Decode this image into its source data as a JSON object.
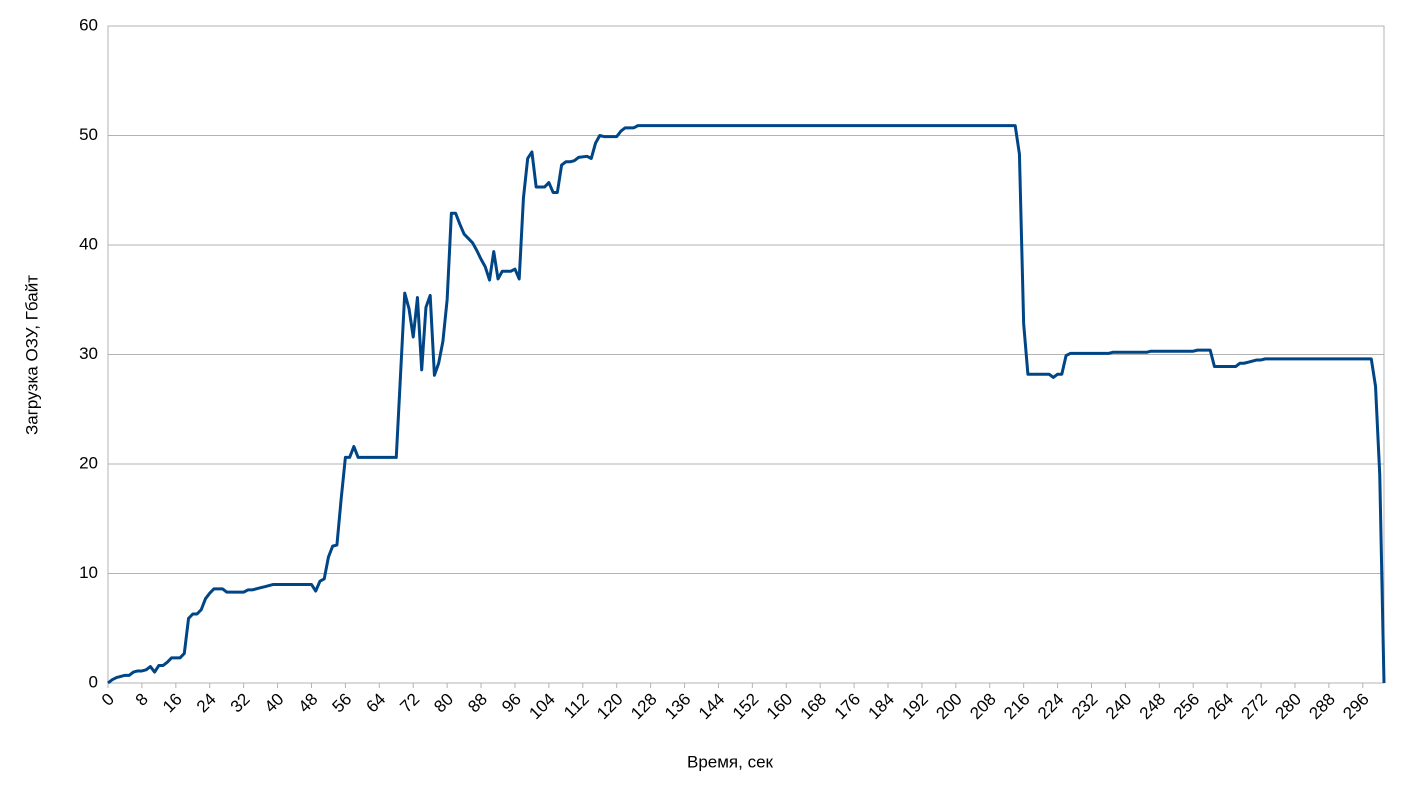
{
  "chart_data": {
    "type": "line",
    "x_label": "Время, сек",
    "y_label": "Загрузка ОЗУ, Гбайт",
    "xlim": [
      0,
      301
    ],
    "xticks": [
      0,
      8,
      16,
      24,
      32,
      40,
      48,
      56,
      64,
      72,
      80,
      88,
      96,
      104,
      112,
      120,
      128,
      136,
      144,
      152,
      160,
      168,
      176,
      184,
      192,
      200,
      208,
      216,
      224,
      232,
      240,
      248,
      256,
      264,
      272,
      280,
      288,
      296
    ],
    "ylim": [
      0,
      60
    ],
    "yticks": [
      0,
      10,
      20,
      30,
      40,
      50,
      60
    ],
    "grid": true,
    "series": [
      {
        "name": null,
        "color": "#004586",
        "x": [
          0,
          1,
          2,
          3,
          4,
          5,
          6,
          7,
          8,
          9,
          10,
          11,
          12,
          13,
          14,
          15,
          17,
          18,
          19,
          20,
          21,
          22,
          23,
          24,
          25,
          27,
          28,
          32,
          33,
          34,
          35,
          36,
          37,
          38,
          39,
          48,
          49,
          50,
          51,
          52,
          53,
          54,
          55,
          56,
          57,
          58,
          59,
          68,
          70,
          71,
          72,
          73,
          74,
          75,
          76,
          77,
          78,
          79,
          80,
          81,
          82,
          83,
          84,
          85,
          86,
          87,
          88,
          89,
          90,
          91,
          92,
          93,
          95,
          96,
          97,
          98,
          99,
          100,
          101,
          103,
          104,
          105,
          106,
          107,
          108,
          109,
          110,
          111,
          113,
          114,
          115,
          116,
          117,
          120,
          121,
          122,
          124,
          125,
          214,
          215,
          216,
          217,
          222,
          223,
          224,
          225,
          226,
          227,
          236,
          237,
          245,
          246,
          256,
          257,
          260,
          261,
          266,
          267,
          268,
          269,
          270,
          271,
          272,
          273,
          298,
          299,
          300,
          301
        ],
        "values": [
          0,
          0.3,
          0.5,
          0.6,
          0.7,
          0.7,
          1.0,
          1.1,
          1.1,
          1.2,
          1.5,
          1.0,
          1.6,
          1.6,
          1.9,
          2.3,
          2.3,
          2.7,
          5.9,
          6.3,
          6.3,
          6.7,
          7.7,
          8.2,
          8.6,
          8.6,
          8.3,
          8.3,
          8.5,
          8.5,
          8.6,
          8.7,
          8.8,
          8.9,
          9.0,
          9.0,
          8.4,
          9.3,
          9.5,
          11.5,
          12.5,
          12.6,
          16.8,
          20.6,
          20.6,
          21.6,
          20.6,
          20.6,
          35.6,
          34.2,
          31.6,
          35.2,
          28.6,
          34.3,
          35.4,
          28.1,
          29.2,
          31.2,
          35,
          42.9,
          42.9,
          41.9,
          41,
          40.6,
          40.2,
          39.5,
          38.7,
          38.0,
          36.8,
          39.4,
          36.9,
          37.6,
          37.6,
          37.8,
          36.9,
          44.3,
          47.9,
          48.5,
          45.3,
          45.3,
          45.7,
          44.8,
          44.8,
          47.3,
          47.6,
          47.6,
          47.7,
          48,
          48.1,
          47.9,
          49.3,
          50,
          49.9,
          49.9,
          50.4,
          50.7,
          50.7,
          50.9,
          50.9,
          48.3,
          32.8,
          28.2,
          28.2,
          27.9,
          28.2,
          28.2,
          29.9,
          30.1,
          30.1,
          30.2,
          30.2,
          30.3,
          30.3,
          30.4,
          30.4,
          28.9,
          28.9,
          29.2,
          29.2,
          29.3,
          29.4,
          29.5,
          29.5,
          29.6,
          29.6,
          27.1,
          19,
          0
        ]
      }
    ]
  }
}
